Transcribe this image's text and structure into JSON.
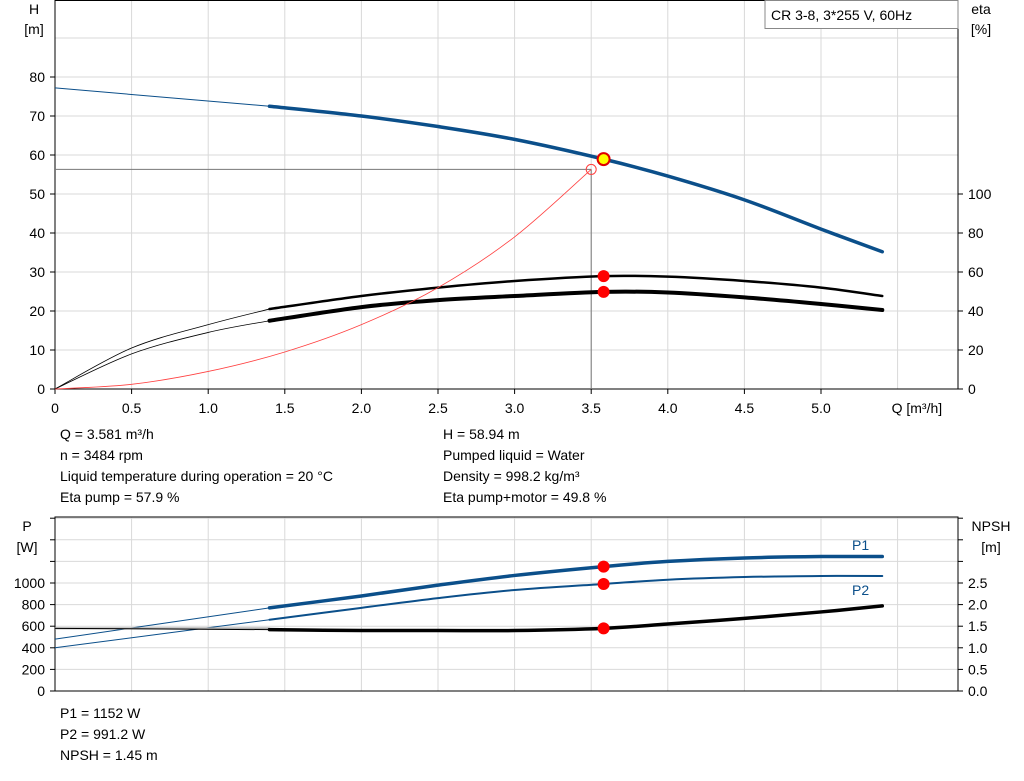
{
  "chart_data": [
    {
      "type": "line",
      "title": "CR 3-8, 3*255 V, 60Hz",
      "xlabel": "Q [m³/h]",
      "ylabel": "H\n[m]",
      "y2label": "eta\n[%]",
      "xlim": [
        0,
        5.8
      ],
      "ylim": [
        0,
        100
      ],
      "y2lim": [
        0,
        200
      ],
      "x_ticks": [
        "0",
        "0.5",
        "1.0",
        "1.5",
        "2.0",
        "2.5",
        "3.0",
        "3.5",
        "4.0",
        "4.5",
        "5.0"
      ],
      "y_ticks": [
        "0",
        "10",
        "20",
        "30",
        "40",
        "50",
        "60",
        "70",
        "80"
      ],
      "y2_ticks": [
        "0",
        "20",
        "40",
        "60",
        "80",
        "100"
      ],
      "grid": true,
      "series": [
        {
          "key": "H",
          "axis": "left",
          "color": "#0b4f8a",
          "x": [
            0,
            1.4,
            2.0,
            2.5,
            3.0,
            3.581,
            4.0,
            4.5,
            5.0,
            5.4
          ],
          "y": [
            77.2,
            72.5,
            70,
            67.3,
            64,
            58.94,
            54.6,
            48.5,
            41,
            35.2
          ]
        },
        {
          "key": "eta_pump",
          "axis": "right",
          "color": "#000000",
          "x": [
            0,
            0.5,
            1.0,
            1.4,
            2.0,
            2.5,
            3.0,
            3.581,
            4.0,
            4.5,
            5.0,
            5.4
          ],
          "y": [
            0,
            21,
            33,
            41,
            47.7,
            52,
            55.4,
            57.9,
            57.6,
            55.4,
            52,
            47.7
          ]
        },
        {
          "key": "eta_pump_motor",
          "axis": "right",
          "color": "#000000",
          "x": [
            0,
            0.5,
            1.0,
            1.4,
            2.0,
            2.5,
            3.0,
            3.581,
            4.0,
            4.5,
            5.0,
            5.4
          ],
          "y": [
            0,
            18,
            29,
            35,
            42,
            45.6,
            47.7,
            49.8,
            49.5,
            47,
            43.6,
            40.5
          ]
        },
        {
          "key": "system",
          "axis": "left",
          "color": "#ff4040",
          "x": [
            0,
            0.5,
            1.0,
            1.5,
            2.0,
            2.5,
            3.0,
            3.5
          ],
          "y": [
            0,
            1.2,
            4.5,
            9.5,
            16.5,
            26,
            39,
            56.3
          ]
        }
      ],
      "duty_point": {
        "x": 3.581,
        "y": 58.94
      },
      "setpoint": {
        "x": 3.5,
        "y": 56.3
      }
    },
    {
      "type": "line",
      "xlim": [
        0,
        5.8
      ],
      "ylabel": "P\n[W]",
      "y2label": "NPSH\n[m]",
      "ylim": [
        0,
        1600
      ],
      "y2lim": [
        0,
        4.0
      ],
      "y_ticks": [
        "0",
        "200",
        "400",
        "600",
        "800",
        "1000"
      ],
      "y2_ticks": [
        "0.0",
        "0.5",
        "1.0",
        "1.5",
        "2.0",
        "2.5"
      ],
      "grid": true,
      "series": [
        {
          "key": "P1",
          "name": "P1",
          "axis": "left",
          "color": "#0b4f8a",
          "x": [
            0,
            1.4,
            2.0,
            2.5,
            3.0,
            3.581,
            4.0,
            4.5,
            5.0,
            5.4
          ],
          "y": [
            480,
            770,
            880,
            980,
            1070,
            1152,
            1200,
            1232,
            1245,
            1245
          ]
        },
        {
          "key": "P2",
          "name": "P2",
          "axis": "left",
          "color": "#0b4f8a",
          "x": [
            0,
            1.4,
            2.0,
            2.5,
            3.0,
            3.581,
            4.0,
            4.5,
            5.0,
            5.4
          ],
          "y": [
            400,
            660,
            770,
            860,
            935,
            991.2,
            1030,
            1055,
            1065,
            1065
          ]
        },
        {
          "key": "NPSH",
          "axis": "right",
          "color": "#000000",
          "x": [
            0,
            1.4,
            2.0,
            2.5,
            3.0,
            3.581,
            4.0,
            4.5,
            5.0,
            5.4
          ],
          "y": [
            1.45,
            1.42,
            1.4,
            1.4,
            1.4,
            1.45,
            1.55,
            1.68,
            1.83,
            1.97
          ]
        }
      ]
    }
  ],
  "info_top_left": [
    "Q = 3.581 m³/h",
    "n = 3484 rpm",
    "Liquid temperature during operation = 20 °C",
    "Eta pump = 57.9 %"
  ],
  "info_top_right": [
    "H = 58.94 m",
    "Pumped liquid = Water",
    "Density = 998.2 kg/m³",
    "Eta pump+motor = 49.8 %"
  ],
  "info_bottom": [
    "P1 = 1152 W",
    "P2 = 991.2 W",
    "NPSH = 1.45 m"
  ]
}
